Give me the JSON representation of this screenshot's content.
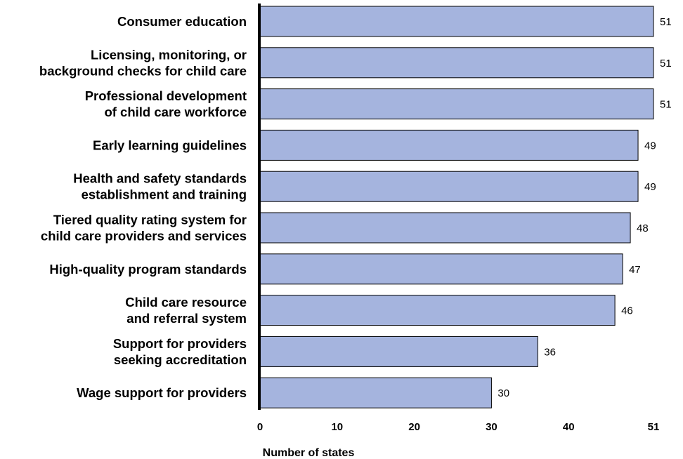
{
  "chart_data": {
    "type": "bar",
    "orientation": "horizontal",
    "categories": [
      [
        "Consumer education"
      ],
      [
        "Licensing, monitoring, or",
        "background checks for child care"
      ],
      [
        "Professional development",
        "of child care workforce"
      ],
      [
        "Early learning guidelines"
      ],
      [
        "Health and safety standards",
        "establishment and training"
      ],
      [
        "Tiered quality rating system for",
        "child care providers and services"
      ],
      [
        "High-quality program standards"
      ],
      [
        "Child care resource",
        "and referral system"
      ],
      [
        "Support for providers",
        "seeking accreditation"
      ],
      [
        "Wage support for providers"
      ]
    ],
    "values": [
      51,
      51,
      51,
      49,
      49,
      48,
      47,
      46,
      36,
      30
    ],
    "value_labels": [
      "51",
      "51",
      "51",
      "49",
      "49",
      "48",
      "47",
      "46",
      "36",
      "30"
    ],
    "xlabel": "Number of states",
    "ylabel": "",
    "xlim": [
      0,
      51
    ],
    "xticks": [
      0,
      10,
      20,
      30,
      40,
      51
    ],
    "xtick_labels": [
      "0",
      "10",
      "20",
      "30",
      "40",
      "51"
    ],
    "grid": false,
    "legend": "none",
    "colors": {
      "bar": "#a5b4de",
      "bar_border": "#000000",
      "axis": "#000000"
    }
  }
}
